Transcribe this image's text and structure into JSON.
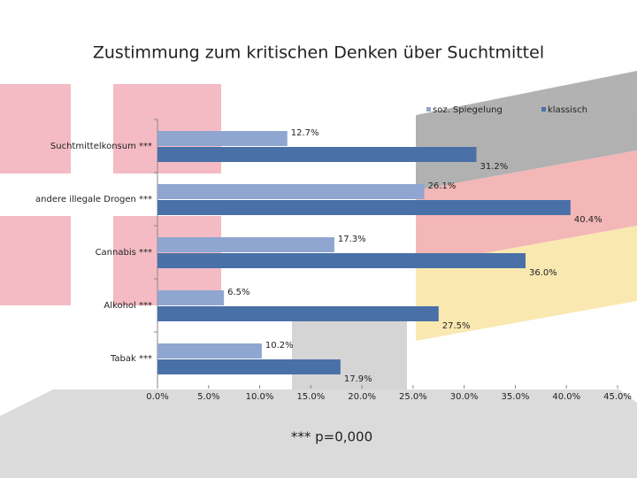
{
  "chart_data": {
    "type": "hbar",
    "title": "Zustimmung zum kritischen Denken über Suchtmittel",
    "categories": [
      "Suchtmittelkonsum ***",
      "andere illegale Drogen ***",
      "Cannabis ***",
      "Alkohol ***",
      "Tabak ***"
    ],
    "series": [
      {
        "name": "soz. Spiegelung",
        "color": "#8fa6d0",
        "values": [
          12.7,
          26.1,
          17.3,
          6.5,
          10.2
        ],
        "value_labels": [
          "12.7%",
          "26.1%",
          "17.3%",
          "6.5%",
          "10.2%"
        ]
      },
      {
        "name": "klassisch",
        "color": "#4a70a8",
        "values": [
          31.2,
          40.4,
          36.0,
          27.5,
          17.9
        ],
        "value_labels": [
          "31.2%",
          "40.4%",
          "36.0%",
          "27.5%",
          "17.9%"
        ]
      }
    ],
    "xlim": [
      0,
      45
    ],
    "xticks": [
      {
        "value": 0,
        "label": "0.0%"
      },
      {
        "value": 5,
        "label": "5.0%"
      },
      {
        "value": 10,
        "label": "10.0%"
      },
      {
        "value": 15,
        "label": "15.0%"
      },
      {
        "value": 20,
        "label": "20.0%"
      },
      {
        "value": 25,
        "label": "25.0%"
      },
      {
        "value": 30,
        "label": "30.0%"
      },
      {
        "value": 35,
        "label": "35.0%"
      },
      {
        "value": 40,
        "label": "40.0%"
      },
      {
        "value": 45,
        "label": "45.0%"
      }
    ],
    "legend": "top-right",
    "annotation": "*** p=0,000"
  }
}
